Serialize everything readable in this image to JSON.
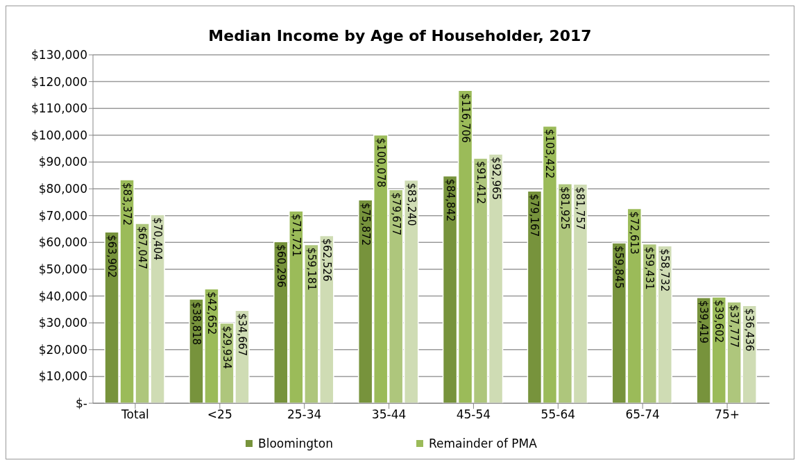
{
  "chart_data": {
    "type": "bar",
    "title": "Median Income by Age of Householder, 2017",
    "categories": [
      "Total",
      "<25",
      "25-34",
      "35-44",
      "45-54",
      "55-64",
      "65-74",
      "75+"
    ],
    "series": [
      {
        "name": "Bloomington",
        "color": "#77933c",
        "values": [
          63902,
          38818,
          60296,
          75872,
          84842,
          79167,
          59845,
          39419
        ],
        "value_labels": [
          "$63,902",
          "$38,818",
          "$60,296",
          "$75,872",
          "$84,842",
          "$79,167",
          "$59,845",
          "$39,419"
        ]
      },
      {
        "name": "Remainder of PMA",
        "color": "#9bbb59",
        "values": [
          83372,
          42652,
          71721,
          100078,
          116706,
          103422,
          72613,
          39602
        ],
        "value_labels": [
          "$83,372",
          "$42,652",
          "$71,721",
          "$100,078",
          "$116,706",
          "$103,422",
          "$72,613",
          "$39,602"
        ]
      },
      {
        "color": "#aec67c",
        "values": [
          67047,
          29934,
          59181,
          79677,
          91412,
          81925,
          59431,
          37777
        ],
        "value_labels": [
          "$67,047",
          "$29,934",
          "$59,181",
          "$79,677",
          "$91,412",
          "$81,925",
          "$59,431",
          "$37,777"
        ]
      },
      {
        "color": "#cfdcb4",
        "values": [
          70404,
          34667,
          62526,
          83240,
          92965,
          81757,
          58732,
          36436
        ],
        "value_labels": [
          "$70,404",
          "$34,667",
          "$62,526",
          "$83,240",
          "$92,965",
          "$81,757",
          "$58,732",
          "$36,436"
        ]
      }
    ],
    "ylim": [
      0,
      130000
    ],
    "yticks": [
      {
        "value": 0,
        "label": "$-"
      },
      {
        "value": 10000,
        "label": "$10,000"
      },
      {
        "value": 20000,
        "label": "$20,000"
      },
      {
        "value": 30000,
        "label": "$30,000"
      },
      {
        "value": 40000,
        "label": "$40,000"
      },
      {
        "value": 50000,
        "label": "$50,000"
      },
      {
        "value": 60000,
        "label": "$60,000"
      },
      {
        "value": 70000,
        "label": "$70,000"
      },
      {
        "value": 80000,
        "label": "$80,000"
      },
      {
        "value": 90000,
        "label": "$90,000"
      },
      {
        "value": 100000,
        "label": "$100,000"
      },
      {
        "value": 110000,
        "label": "$110,000"
      },
      {
        "value": 120000,
        "label": "$120,000"
      },
      {
        "value": 130000,
        "label": "$130,000"
      }
    ],
    "grid": "y",
    "legend": "bottom"
  }
}
